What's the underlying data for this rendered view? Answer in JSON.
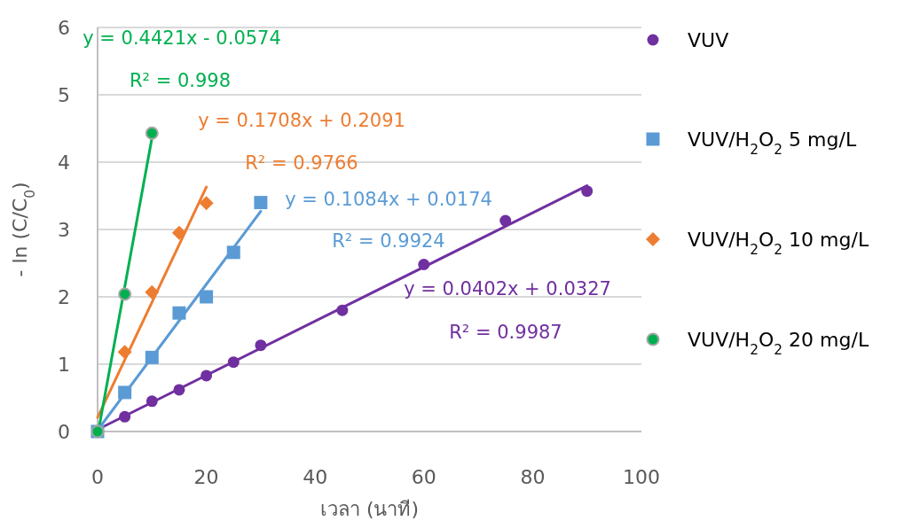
{
  "chart_data": {
    "type": "scatter",
    "xlabel": "เวลา (นาที)",
    "ylabel": "- ln (C/C$_{0}$)",
    "xlim": [
      0,
      100
    ],
    "ylim": [
      0,
      6
    ],
    "xticks": [
      0,
      20,
      40,
      60,
      80,
      100
    ],
    "yticks": [
      0,
      1,
      2,
      3,
      4,
      5,
      6
    ],
    "grid": "y",
    "legend": "right",
    "series": [
      {
        "name": "VUV",
        "marker": "circle",
        "color": "#7030a0",
        "x": [
          5,
          10,
          15,
          20,
          25,
          30,
          45,
          60,
          75,
          90
        ],
        "values": [
          0.22,
          0.45,
          0.62,
          0.83,
          1.03,
          1.28,
          1.8,
          2.48,
          3.13,
          3.57
        ]
      },
      {
        "name": "VUV/H$_{2}$O$_{2}$ 5 mg/L",
        "marker": "square",
        "color": "#5b9bd5",
        "x": [
          0,
          5,
          10,
          15,
          20,
          25,
          30
        ],
        "values": [
          0,
          0.58,
          1.1,
          1.76,
          2.0,
          2.66,
          3.4
        ]
      },
      {
        "name": "VUV/H$_{2}$O$_{2}$ 10 mg/L",
        "marker": "diamond",
        "color": "#ed7d31",
        "x": [
          5,
          10,
          15,
          20
        ],
        "values": [
          1.18,
          2.07,
          2.95,
          3.39
        ]
      },
      {
        "name": "VUV/H$_{2}$O$_{2}$ 20 mg/L",
        "marker": "circle",
        "color": "#00b050",
        "x": [
          0,
          5,
          10
        ],
        "values": [
          0,
          2.04,
          4.43
        ]
      },
      {
        "type": "line",
        "marker": "none",
        "color": "#7030a0",
        "x": [
          0,
          90
        ],
        "values": [
          0.03,
          3.65
        ]
      },
      {
        "type": "line",
        "marker": "none",
        "color": "#5b9bd5",
        "x": [
          0,
          30
        ],
        "values": [
          0.02,
          3.27
        ]
      },
      {
        "type": "line",
        "marker": "none",
        "color": "#ed7d31",
        "x": [
          0,
          20
        ],
        "values": [
          0.21,
          3.63
        ]
      },
      {
        "type": "line",
        "marker": "none",
        "color": "#00b050",
        "x": [
          0.13,
          10
        ],
        "values": [
          0,
          4.36
        ]
      }
    ],
    "annotations": [
      "y = 0.4421x - 0.0574",
      "R² = 0.998",
      "y = 0.1708x + 0.2091",
      "R² = 0.9766",
      "y = 0.1084x + 0.0174",
      "R² = 0.9924",
      "y = 0.0402x + 0.0327",
      "R² = 0.9987"
    ]
  }
}
